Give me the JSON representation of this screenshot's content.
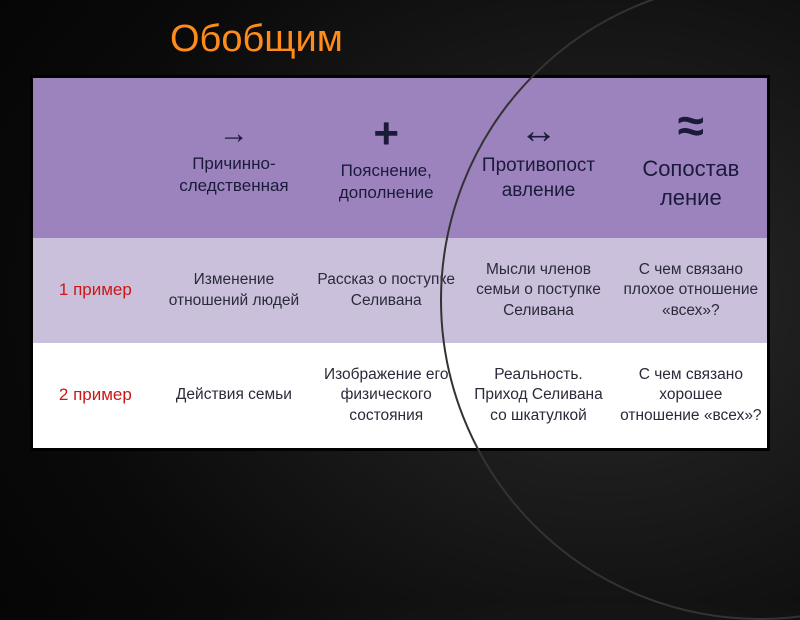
{
  "title": "Обобщим",
  "table": {
    "header": {
      "corner": "",
      "cols": [
        {
          "symbol": "→",
          "label": "Причинно-следственная"
        },
        {
          "symbol": "+",
          "label": "Пояснение, дополнение"
        },
        {
          "symbol": "↔",
          "label": "Противопост авление"
        },
        {
          "symbol": "≈",
          "label": "Сопостав ление"
        }
      ]
    },
    "rows": [
      {
        "label": "1 пример",
        "cells": [
          "Изменение отношений людей",
          "Рассказ о поступке Селивана",
          "Мысли членов семьи о поступке Селивана",
          "С чем связано плохое отношение «всех»?"
        ]
      },
      {
        "label": "2 пример",
        "cells": [
          "Действия семьи",
          "Изображение его физического состояния",
          "Реальность. Приход Селивана со шкатулкой",
          "С чем связано хорошее отношение «всех»?"
        ]
      }
    ]
  },
  "style": {
    "title_color": "#ff8c1a",
    "header_bg": "#9d83bd",
    "row1_bg": "#cbc0db",
    "row2_bg": "#ffffff",
    "row_label_color": "#c81818",
    "header_text_color": "#1a1a3a",
    "body_text_color": "#2a2a3a",
    "page_bg": "#000000"
  }
}
